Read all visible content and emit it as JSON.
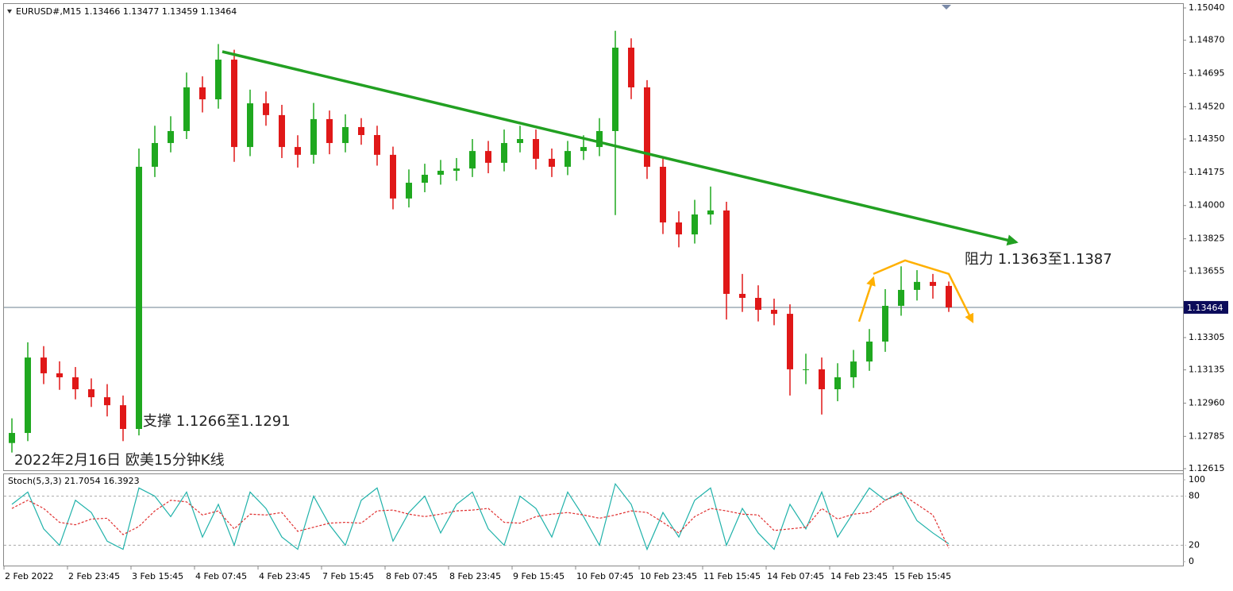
{
  "chart_data": [
    {
      "type": "candlestick",
      "title": "EURUSD#,M15  1.13466 1.13477 1.13459 1.13464",
      "categories": [
        "2 Feb 2022",
        null,
        null,
        null,
        "2 Feb 23:45",
        null,
        null,
        null,
        "3 Feb 15:45",
        null,
        null,
        null,
        "4 Feb 07:45",
        null,
        null,
        null,
        "4 Feb 23:45",
        null,
        null,
        null,
        "7 Feb 15:45",
        null,
        null,
        null,
        "8 Feb 07:45",
        null,
        null,
        null,
        "8 Feb 23:45",
        null,
        null,
        null,
        "9 Feb 15:45",
        null,
        null,
        null,
        "10 Feb 07:45",
        null,
        null,
        null,
        "10 Feb 23:45",
        null,
        null,
        null,
        "11 Feb 15:45",
        null,
        null,
        null,
        "14 Feb 07:45",
        null,
        null,
        null,
        "14 Feb 23:45",
        null,
        null,
        null,
        "15 Feb 15:45",
        null,
        null,
        null
      ],
      "open": [
        1.1275,
        1.12803,
        1.132,
        1.13117,
        1.13096,
        1.13033,
        1.12991,
        1.12949,
        1.12824,
        1.14204,
        1.14329,
        1.14392,
        1.14622,
        1.14559,
        1.14768,
        1.14308,
        1.14538,
        1.14476,
        1.14308,
        1.14267,
        1.14455,
        1.14329,
        1.14413,
        1.14371,
        1.14267,
        1.14037,
        1.1412,
        1.14162,
        1.14183,
        1.14195,
        1.14287,
        1.14225,
        1.14329,
        1.1435,
        1.14246,
        1.14204,
        1.14287,
        1.14308,
        1.14392,
        1.14831,
        1.14622,
        1.14204,
        1.13911,
        1.13848,
        1.13953,
        1.13974,
        1.13535,
        1.13514,
        1.13451,
        1.1343,
        1.13138,
        1.13138,
        1.13033,
        1.13096,
        1.13179,
        1.13284,
        1.13472,
        1.13556,
        1.13598,
        1.13577
      ],
      "high": [
        1.1288,
        1.1328,
        1.1326,
        1.1318,
        1.1315,
        1.1309,
        1.1306,
        1.13,
        1.143,
        1.1442,
        1.1447,
        1.147,
        1.1468,
        1.1485,
        1.1482,
        1.1461,
        1.146,
        1.1453,
        1.1437,
        1.1454,
        1.145,
        1.1448,
        1.1446,
        1.1442,
        1.1431,
        1.1419,
        1.1422,
        1.1424,
        1.1425,
        1.1435,
        1.1434,
        1.144,
        1.1442,
        1.144,
        1.143,
        1.1434,
        1.1437,
        1.1446,
        1.1492,
        1.1488,
        1.1466,
        1.1426,
        1.1397,
        1.1403,
        1.141,
        1.1402,
        1.1364,
        1.1358,
        1.1351,
        1.1348,
        1.1322,
        1.132,
        1.1317,
        1.1324,
        1.1335,
        1.1356,
        1.1368,
        1.1366,
        1.1364,
        1.136
      ],
      "low": [
        1.127,
        1.1276,
        1.1306,
        1.1303,
        1.1298,
        1.1294,
        1.1289,
        1.1276,
        1.1279,
        1.1415,
        1.1428,
        1.1435,
        1.1449,
        1.1451,
        1.1423,
        1.1426,
        1.1442,
        1.1425,
        1.142,
        1.1422,
        1.1427,
        1.1428,
        1.1432,
        1.1421,
        1.1398,
        1.1399,
        1.1407,
        1.1411,
        1.1413,
        1.1415,
        1.1417,
        1.1418,
        1.1428,
        1.1419,
        1.1415,
        1.1416,
        1.1424,
        1.1426,
        1.1395,
        1.1456,
        1.1414,
        1.1385,
        1.1378,
        1.138,
        1.139,
        1.134,
        1.1344,
        1.1339,
        1.1337,
        1.13,
        1.1306,
        1.129,
        1.1297,
        1.1304,
        1.1313,
        1.1323,
        1.1342,
        1.135,
        1.1351,
        1.1344
      ],
      "close": [
        1.12803,
        1.132,
        1.13117,
        1.13096,
        1.13033,
        1.12991,
        1.12949,
        1.12824,
        1.14204,
        1.14329,
        1.14392,
        1.14622,
        1.14559,
        1.14768,
        1.14308,
        1.14538,
        1.14476,
        1.14308,
        1.14267,
        1.14455,
        1.14329,
        1.14413,
        1.14371,
        1.14267,
        1.14037,
        1.1412,
        1.14162,
        1.14183,
        1.14195,
        1.14287,
        1.14225,
        1.14329,
        1.1435,
        1.14246,
        1.14204,
        1.14287,
        1.14308,
        1.14392,
        1.14831,
        1.14622,
        1.14204,
        1.13911,
        1.13848,
        1.13953,
        1.13974,
        1.13535,
        1.13514,
        1.13451,
        1.1343,
        1.13138,
        1.13138,
        1.13033,
        1.13096,
        1.13179,
        1.13284,
        1.13472,
        1.13556,
        1.13598,
        1.13577,
        1.13464
      ],
      "up_color": "#1fa81f",
      "down_color": "#e01818",
      "ylim": [
        1.12615,
        1.1504
      ],
      "yticks": [
        {
          "value": 1.1504,
          "label": "1.15040"
        },
        {
          "value": 1.1487,
          "label": "1.14870"
        },
        1.14695,
        {
          "value": 1.1452,
          "label": "1.14520"
        },
        {
          "value": 1.1435,
          "label": "1.14350"
        },
        1.14175,
        {
          "value": 1.14,
          "label": "1.14000"
        },
        1.13825,
        1.13655,
        1.13305,
        1.13135,
        {
          "value": 1.1296,
          "label": "1.12960"
        },
        1.12785,
        1.12615
      ],
      "last_price": 1.13464,
      "trend_line": {
        "start": [
          13.25,
          1.1481
        ],
        "end": [
          63.25,
          1.13807
        ],
        "color": "#22a022"
      },
      "pattern_lines": {
        "color": "#ffb000",
        "paths": [
          [
            [
              53.35,
              1.13389
            ],
            [
              54.25,
              1.13619
            ]
          ],
          [
            [
              54.25,
              1.1364
            ],
            [
              56.25,
              1.13711
            ],
            [
              59,
              1.1364
            ],
            [
              60.5,
              1.13389
            ]
          ]
        ]
      },
      "annotations": [
        "阻力 1.1363至1.1387",
        "支撑 1.1266至1.1291",
        "2022年2月16日 欧美15分钟K线"
      ]
    },
    {
      "type": "line",
      "title": "Stoch(5,3,3) 21.7054 16.3923",
      "series": [
        {
          "color": "#20b2aa",
          "dashed": false,
          "values": [
            70,
            85,
            40,
            20,
            75,
            60,
            25,
            15,
            90,
            80,
            55,
            85,
            30,
            70,
            20,
            85,
            65,
            30,
            15,
            80,
            45,
            20,
            75,
            90,
            25,
            60,
            80,
            35,
            70,
            85,
            40,
            20,
            80,
            65,
            30,
            85,
            55,
            20,
            95,
            70,
            15,
            60,
            30,
            75,
            90,
            20,
            65,
            35,
            15,
            70,
            40,
            85,
            30,
            60,
            90,
            75,
            85,
            50,
            35,
            21.7054
          ]
        },
        {
          "color": "#e03030",
          "dashed": true,
          "values": [
            65,
            75,
            65,
            48,
            45,
            52,
            53,
            33,
            43,
            62,
            75,
            73,
            57,
            62,
            40,
            58,
            57,
            60,
            37,
            42,
            47,
            48,
            47,
            62,
            63,
            58,
            55,
            58,
            62,
            63,
            65,
            48,
            47,
            55,
            58,
            60,
            57,
            53,
            57,
            62,
            60,
            48,
            35,
            55,
            65,
            62,
            58,
            57,
            38,
            40,
            42,
            65,
            52,
            58,
            60,
            75,
            83,
            70,
            57,
            16.3923
          ]
        }
      ],
      "ylim": [
        0,
        100
      ],
      "yticks": [
        100,
        80,
        20,
        0
      ]
    }
  ]
}
